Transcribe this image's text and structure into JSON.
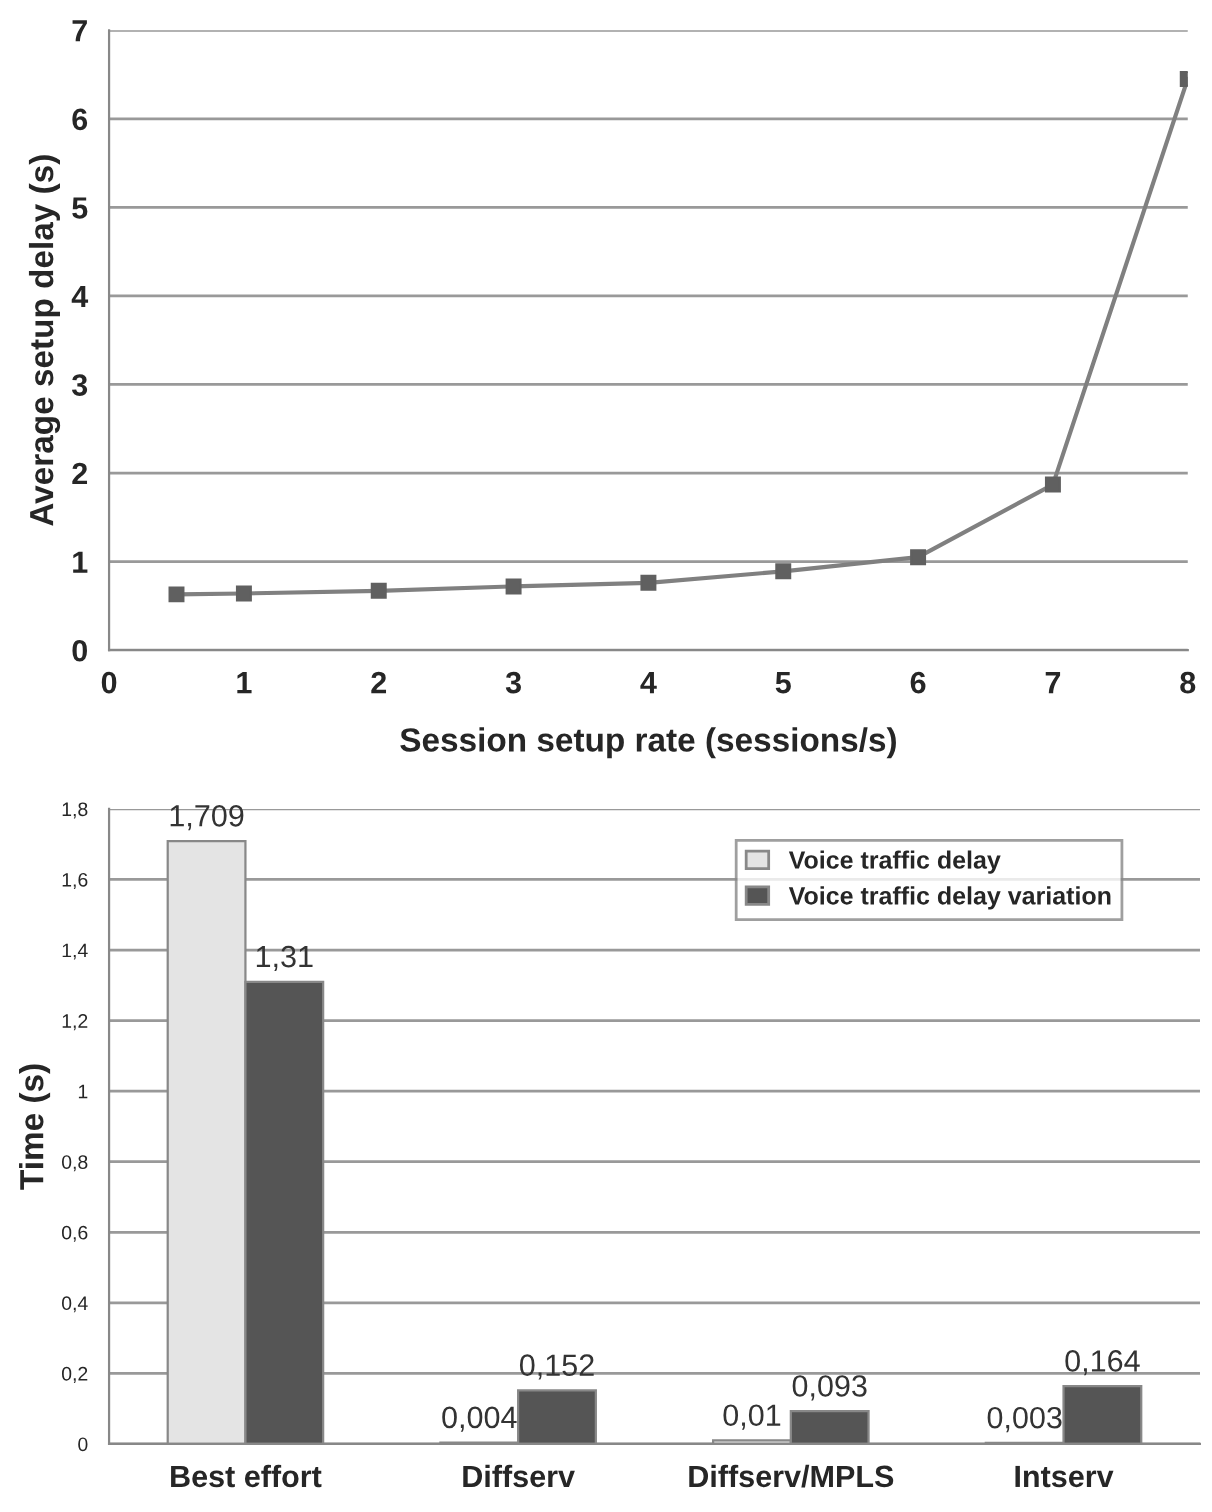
{
  "chart_data": [
    {
      "type": "line",
      "xlabel": "Session setup rate (sessions/s)",
      "ylabel": "Average setup delay (s)",
      "x": [
        0.5,
        1,
        2,
        3,
        4,
        5,
        6,
        7,
        8
      ],
      "series": [
        {
          "color": "#808080",
          "values": [
            0.63,
            0.64,
            0.67,
            0.72,
            0.76,
            0.89,
            1.05,
            1.87,
            6.45
          ]
        }
      ],
      "xlim": [
        0,
        8
      ],
      "xticks": [
        0,
        1,
        2,
        3,
        4,
        5,
        6,
        7,
        8
      ],
      "ylim": [
        0,
        7
      ],
      "yticks": [
        0,
        1,
        2,
        3,
        4,
        5,
        6,
        7
      ],
      "grid": "y",
      "marker": "square",
      "line_style": "solid",
      "legend": false
    },
    {
      "type": "bar",
      "ylabel": "Time (s)",
      "categories": [
        "Best effort",
        "Diffserv",
        "Diffserv/MPLS",
        "Intserv"
      ],
      "series": [
        {
          "name": "Voice traffic delay",
          "color": "#e4e4e4",
          "values": [
            1.709,
            0.004,
            0.01,
            0.003
          ],
          "value_labels": [
            "1,709",
            "0,004",
            "0,01",
            "0,003"
          ]
        },
        {
          "name": "Voice traffic delay variation",
          "color": "#555555",
          "values": [
            1.31,
            0.152,
            0.093,
            0.164
          ],
          "value_labels": [
            "1,31",
            "0,152",
            "0,093",
            "0,164"
          ]
        }
      ],
      "ylim": [
        0,
        1.8
      ],
      "yticks": [
        0,
        {
          "value": 0.2,
          "label": "0,2"
        },
        {
          "value": 0.4,
          "label": "0,4"
        },
        {
          "value": 0.6,
          "label": "0,6"
        },
        {
          "value": 0.8,
          "label": "0,8"
        },
        1,
        {
          "value": 1.2,
          "label": "1,2"
        },
        {
          "value": 1.4,
          "label": "1,4"
        },
        {
          "value": 1.6,
          "label": "1,6"
        },
        {
          "value": 1.8,
          "label": "1,8"
        }
      ],
      "grid": "y",
      "legend": "top right"
    }
  ]
}
